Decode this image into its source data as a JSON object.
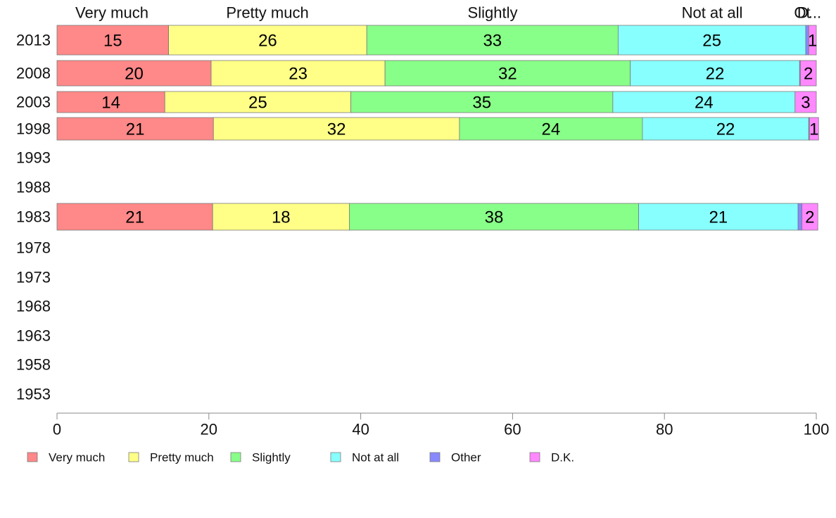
{
  "chart_data": {
    "type": "bar",
    "orientation": "horizontal",
    "stacked": true,
    "years": [
      "2013",
      "2008",
      "2003",
      "1998",
      "1993",
      "1988",
      "1983",
      "1978",
      "1973",
      "1968",
      "1963",
      "1958",
      "1953"
    ],
    "segment_headers": [
      "Very much",
      "Pretty much",
      "Slightly",
      "Not at all",
      "Ot",
      "D..."
    ],
    "series": [
      {
        "name": "Very much",
        "color": "#ff8888",
        "values": [
          14.7,
          20.3,
          14.2,
          20.6,
          null,
          null,
          20.5,
          null,
          null,
          null,
          null,
          null,
          null
        ],
        "labels": [
          "15",
          "20",
          "14",
          "21",
          null,
          null,
          "21",
          null,
          null,
          null,
          null,
          null,
          null
        ]
      },
      {
        "name": "Pretty much",
        "color": "#ffff88",
        "values": [
          26.1,
          22.9,
          24.5,
          32.4,
          null,
          null,
          18.0,
          null,
          null,
          null,
          null,
          null,
          null
        ],
        "labels": [
          "26",
          "23",
          "25",
          "32",
          null,
          null,
          "18",
          null,
          null,
          null,
          null,
          null,
          null
        ]
      },
      {
        "name": "Slightly",
        "color": "#88ff88",
        "values": [
          33.1,
          32.3,
          34.5,
          24.1,
          null,
          null,
          38.1,
          null,
          null,
          null,
          null,
          null,
          null
        ],
        "labels": [
          "33",
          "32",
          "35",
          "24",
          null,
          null,
          "38",
          null,
          null,
          null,
          null,
          null,
          null
        ]
      },
      {
        "name": "Not at all",
        "color": "#88ffff",
        "values": [
          24.7,
          22.3,
          24.0,
          21.9,
          null,
          null,
          21.0,
          null,
          null,
          null,
          null,
          null,
          null
        ],
        "labels": [
          "25",
          "22",
          "24",
          "22",
          null,
          null,
          "21",
          null,
          null,
          null,
          null,
          null,
          null
        ]
      },
      {
        "name": "Other",
        "color": "#8888ff",
        "values": [
          0.4,
          0.1,
          0.0,
          0.1,
          null,
          null,
          0.5,
          null,
          null,
          null,
          null,
          null,
          null
        ],
        "labels": [
          null,
          null,
          null,
          null,
          null,
          null,
          null,
          null,
          null,
          null,
          null,
          null,
          null
        ]
      },
      {
        "name": "D.K.",
        "color": "#ff88ff",
        "values": [
          1.0,
          2.1,
          2.8,
          1.2,
          null,
          null,
          2.1,
          null,
          null,
          null,
          null,
          null,
          null
        ],
        "labels": [
          "1",
          "2",
          "3",
          "1",
          null,
          null,
          "2",
          null,
          null,
          null,
          null,
          null,
          null
        ]
      }
    ],
    "xlim": [
      0,
      100
    ],
    "xticks": [
      "0",
      "20",
      "40",
      "60",
      "80",
      "100"
    ],
    "legend_position": "bottom",
    "grid": false
  }
}
